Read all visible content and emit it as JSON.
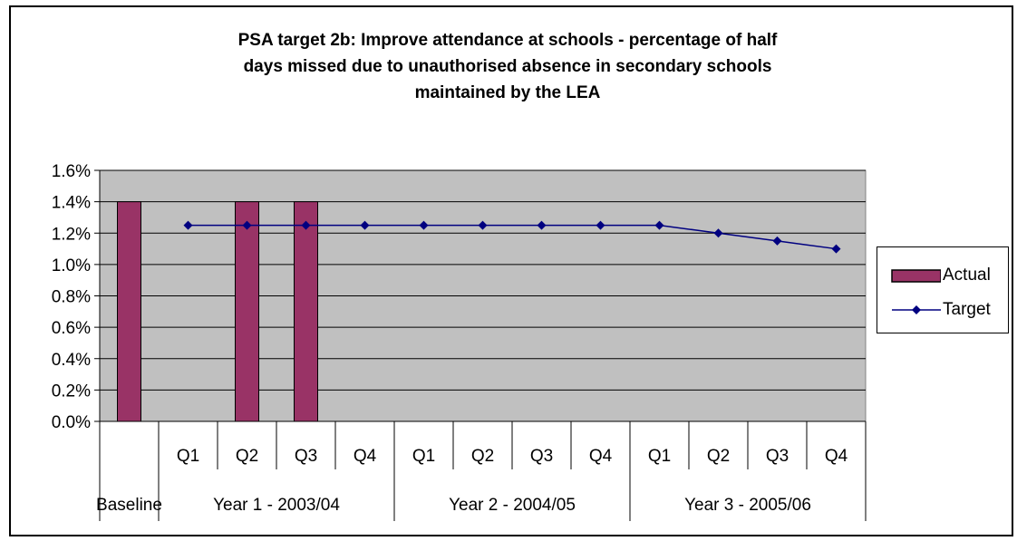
{
  "chart_data": {
    "type": "bar",
    "title_lines": [
      "PSA target 2b: Improve attendance at schools - percentage of half",
      "days missed due to unauthorised absence in secondary schools",
      "maintained by the LEA"
    ],
    "categories": [
      "",
      "Q1",
      "Q2",
      "Q3",
      "Q4",
      "Q1",
      "Q2",
      "Q3",
      "Q4",
      "Q1",
      "Q2",
      "Q3",
      "Q4"
    ],
    "groups": [
      {
        "label": "Baseline",
        "span": [
          0,
          0
        ]
      },
      {
        "label": "Year 1 - 2003/04",
        "span": [
          1,
          4
        ]
      },
      {
        "label": "Year 2 - 2004/05",
        "span": [
          5,
          8
        ]
      },
      {
        "label": "Year 3 - 2005/06",
        "span": [
          9,
          12
        ]
      }
    ],
    "series": [
      {
        "name": "Actual",
        "type": "bar",
        "color": "#993366",
        "values": [
          1.4,
          null,
          1.4,
          1.4,
          null,
          null,
          null,
          null,
          null,
          null,
          null,
          null,
          null
        ]
      },
      {
        "name": "Target",
        "type": "line",
        "color": "#000080",
        "values": [
          null,
          1.25,
          1.25,
          1.25,
          1.25,
          1.25,
          1.25,
          1.25,
          1.25,
          1.25,
          1.2,
          1.15,
          1.1
        ]
      }
    ],
    "ylim": [
      0,
      1.6
    ],
    "yticks": [
      "0.0%",
      "0.2%",
      "0.4%",
      "0.6%",
      "0.8%",
      "1.0%",
      "1.2%",
      "1.4%",
      "1.6%"
    ],
    "plot_background": "#c0c0c0",
    "grid": true,
    "legend_position": "right"
  }
}
